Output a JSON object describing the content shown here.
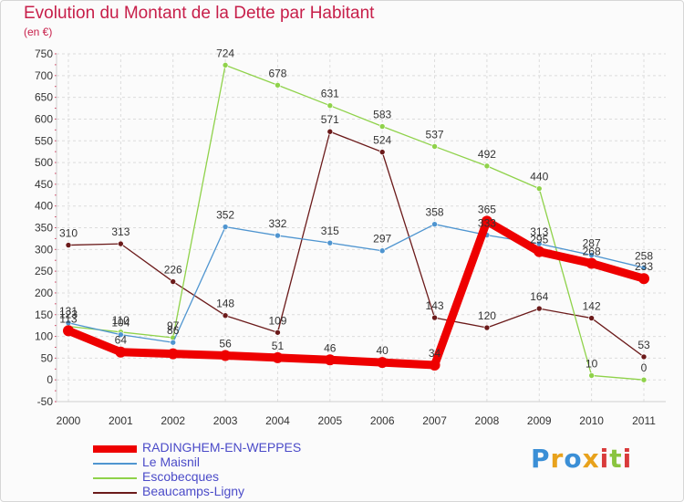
{
  "header": {
    "title": "Evolution du Montant de la Dette par Habitant",
    "subtitle": "(en €)"
  },
  "logo": {
    "text": "Proxiti",
    "colors": [
      "#3b8fd6",
      "#e8a21c",
      "#3b8fd6",
      "#e8a21c",
      "#d93b3b",
      "#8ac43f",
      "#d93b3b"
    ]
  },
  "chart_data": {
    "type": "line",
    "title": "Evolution du Montant de la Dette par Habitant",
    "subtitle": "(en €)",
    "x": [
      "2000",
      "2001",
      "2002",
      "2003",
      "2004",
      "2005",
      "2006",
      "2007",
      "2008",
      "2009",
      "2010",
      "2011"
    ],
    "ylim": [
      -50,
      750
    ],
    "yticks": [
      -50,
      0,
      50,
      100,
      150,
      200,
      250,
      300,
      350,
      400,
      450,
      500,
      550,
      600,
      650,
      700,
      750
    ],
    "grid": true,
    "legend_position": "bottom-left",
    "series": [
      {
        "name": "RADINGHEM-EN-WEPPES",
        "color": "#ee0000",
        "emphasis": true,
        "values": [
          113,
          64,
          60,
          56,
          51,
          46,
          40,
          34,
          365,
          295,
          268,
          233
        ],
        "labels": [
          "113",
          "64",
          "",
          "56",
          "51",
          "46",
          "40",
          "34",
          "365",
          "295",
          "268",
          "233"
        ]
      },
      {
        "name": "Le Maisnil",
        "color": "#4f95d0",
        "values": [
          131,
          104,
          86,
          352,
          332,
          315,
          297,
          358,
          333,
          313,
          287,
          258
        ],
        "labels": [
          "131",
          "104",
          "86",
          "352",
          "332",
          "315",
          "297",
          "358",
          "333",
          "313",
          "287",
          "258"
        ]
      },
      {
        "name": "Escobecques",
        "color": "#8fd24a",
        "values": [
          123,
          110,
          97,
          724,
          678,
          631,
          583,
          537,
          492,
          440,
          10,
          0
        ],
        "labels": [
          "123",
          "110",
          "97",
          "724",
          "678",
          "631",
          "583",
          "537",
          "492",
          "440",
          "10",
          "0"
        ]
      },
      {
        "name": "Beaucamps-Ligny",
        "color": "#6b1a1a",
        "values": [
          310,
          313,
          226,
          148,
          109,
          571,
          524,
          143,
          120,
          164,
          142,
          53
        ],
        "labels": [
          "310",
          "313",
          "226",
          "148",
          "109",
          "571",
          "524",
          "143",
          "120",
          "164",
          "142",
          "53"
        ]
      }
    ]
  }
}
